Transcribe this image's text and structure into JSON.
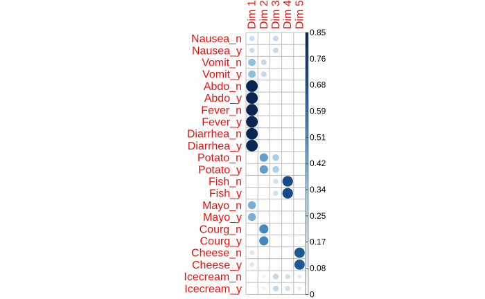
{
  "colors": {
    "label": "#e8120c",
    "grid": "#bdbdbd",
    "tick": "#000000"
  },
  "chart_data": {
    "type": "heatmap",
    "rows": [
      "Nausea_n",
      "Nausea_y",
      "Vomit_n",
      "Vomit_y",
      "Abdo_n",
      "Abdo_y",
      "Fever_n",
      "Fever_y",
      "Diarrhea_n",
      "Diarrhea_y",
      "Potato_n",
      "Potato_y",
      "Fish_n",
      "Fish_y",
      "Mayo_n",
      "Mayo_y",
      "Courg_n",
      "Courg_y",
      "Cheese_n",
      "Cheese_y",
      "Icecream_n",
      "Icecream_y"
    ],
    "columns": [
      "Dim 1",
      "Dim 2",
      "Dim 3",
      "Dim 4",
      "Dim 5"
    ],
    "values": [
      [
        0.18,
        0.01,
        0.2,
        0.0,
        0.0
      ],
      [
        0.18,
        0.01,
        0.2,
        0.0,
        0.0
      ],
      [
        0.35,
        0.2,
        0.0,
        0.03,
        0.0
      ],
      [
        0.35,
        0.2,
        0.0,
        0.03,
        0.0
      ],
      [
        0.85,
        0.0,
        0.0,
        0.0,
        0.0
      ],
      [
        0.85,
        0.0,
        0.0,
        0.0,
        0.0
      ],
      [
        0.85,
        0.0,
        0.0,
        0.0,
        0.0
      ],
      [
        0.85,
        0.0,
        0.0,
        0.0,
        0.0
      ],
      [
        0.85,
        0.0,
        0.0,
        0.0,
        0.0
      ],
      [
        0.85,
        0.0,
        0.0,
        0.0,
        0.0
      ],
      [
        0.0,
        0.45,
        0.28,
        0.0,
        0.02
      ],
      [
        0.0,
        0.45,
        0.28,
        0.0,
        0.02
      ],
      [
        0.0,
        0.0,
        0.17,
        0.7,
        0.0
      ],
      [
        0.0,
        0.0,
        0.17,
        0.7,
        0.0
      ],
      [
        0.4,
        0.0,
        0.0,
        0.0,
        0.0
      ],
      [
        0.4,
        0.0,
        0.0,
        0.0,
        0.0
      ],
      [
        0.0,
        0.52,
        0.02,
        0.0,
        0.05
      ],
      [
        0.0,
        0.52,
        0.02,
        0.0,
        0.05
      ],
      [
        0.14,
        0.01,
        0.0,
        0.0,
        0.66
      ],
      [
        0.14,
        0.01,
        0.0,
        0.0,
        0.66
      ],
      [
        0.0,
        0.07,
        0.21,
        0.17,
        0.1
      ],
      [
        0.0,
        0.07,
        0.21,
        0.17,
        0.1
      ]
    ],
    "legend": {
      "ticks": [
        "0",
        "0.08",
        "0.17",
        "0.25",
        "0.34",
        "0.42",
        "0.51",
        "0.59",
        "0.68",
        "0.76",
        "0.85"
      ],
      "range": [
        0,
        0.85
      ],
      "placement": "right"
    },
    "grid": true
  }
}
